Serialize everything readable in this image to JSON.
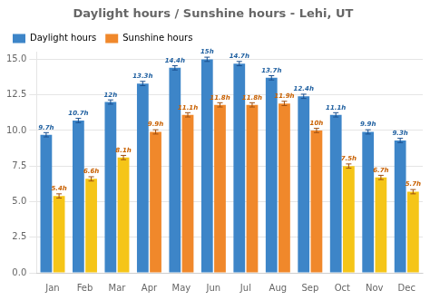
{
  "chart_data": {
    "type": "bar",
    "title": "Daylight hours / Sunshine hours - Lehi, UT",
    "categories": [
      "Jan",
      "Feb",
      "Mar",
      "Apr",
      "May",
      "Jun",
      "Jul",
      "Aug",
      "Sep",
      "Oct",
      "Nov",
      "Dec"
    ],
    "series": [
      {
        "name": "Daylight hours",
        "color": "#3d85c8",
        "values": [
          9.7,
          10.7,
          12.0,
          13.3,
          14.4,
          15.0,
          14.7,
          13.7,
          12.4,
          11.1,
          9.9,
          9.3
        ],
        "value_labels": [
          "9.7h",
          "10.7h",
          "12h",
          "13.3h",
          "14.4h",
          "15h",
          "14.7h",
          "13.7h",
          "12.4h",
          "11.1h",
          "9.9h",
          "9.3h"
        ],
        "errors": [
          0.15,
          0.15,
          0.15,
          0.15,
          0.15,
          0.15,
          0.15,
          0.15,
          0.15,
          0.15,
          0.15,
          0.15
        ]
      },
      {
        "name": "Sunshine hours",
        "color": "#f0882b",
        "colors": [
          "#f5c518",
          "#f5c518",
          "#f5c518",
          "#f0882b",
          "#f0882b",
          "#f0882b",
          "#f0882b",
          "#f0882b",
          "#f0882b",
          "#f5c518",
          "#f5c518",
          "#f5c518"
        ],
        "values": [
          5.4,
          6.6,
          8.1,
          9.9,
          11.1,
          11.8,
          11.8,
          11.9,
          10.0,
          7.5,
          6.7,
          5.7
        ],
        "value_labels": [
          "5.4h",
          "6.6h",
          "8.1h",
          "9.9h",
          "11.1h",
          "11.8h",
          "11.8h",
          "11.9h",
          "10h",
          "7.5h",
          "6.7h",
          "5.7h"
        ],
        "errors": [
          0.15,
          0.15,
          0.15,
          0.15,
          0.15,
          0.15,
          0.15,
          0.15,
          0.15,
          0.15,
          0.15,
          0.15
        ]
      }
    ],
    "ylim": [
      0,
      15.5
    ],
    "yticks": [
      {
        "value": 0,
        "label": "0.0"
      },
      2.5,
      {
        "value": 5,
        "label": "5.0"
      },
      7.5,
      {
        "value": 10,
        "label": "10.0"
      },
      12.5,
      {
        "value": 15,
        "label": "15.0"
      }
    ],
    "grid": true,
    "legend": "upper left",
    "data_labels": true
  }
}
